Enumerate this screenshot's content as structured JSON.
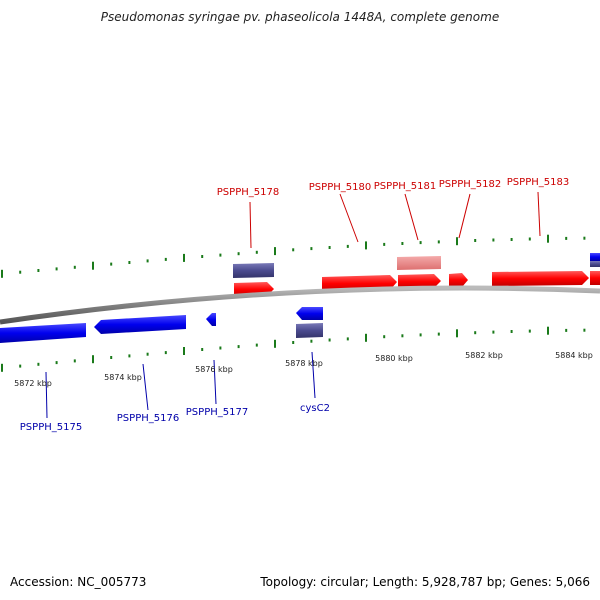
{
  "title": "Pseudomonas syringae pv. phaseolicola 1448A, complete genome",
  "footer": {
    "accession": "Accession: NC_005773",
    "summary": "Topology: circular; Length: 5,928,787 bp; Genes: 5,066"
  },
  "colors": {
    "forward_gene": "#ff0000",
    "forward_gene_light": "#ee8888",
    "reverse_gene": "#0000ee",
    "rna_gene": "#4b4b8f",
    "backbone": "#888888",
    "tick": "#1a7a1a",
    "label_forward": "#cc0000",
    "label_reverse": "#0000aa"
  },
  "scale_labels": [
    "5872 kbp",
    "5874 kbp",
    "5876 kbp",
    "5878 kbp",
    "5880 kbp",
    "5882 kbp",
    "5884 kbp"
  ],
  "gene_labels": {
    "top": [
      "PSPPH_5178",
      "PSPPH_5180",
      "PSPPH_5181",
      "PSPPH_5182",
      "PSPPH_5183"
    ],
    "bottom": [
      "PSPPH_5175",
      "PSPPH_5176",
      "PSPPH_5177",
      "cysC2"
    ]
  }
}
